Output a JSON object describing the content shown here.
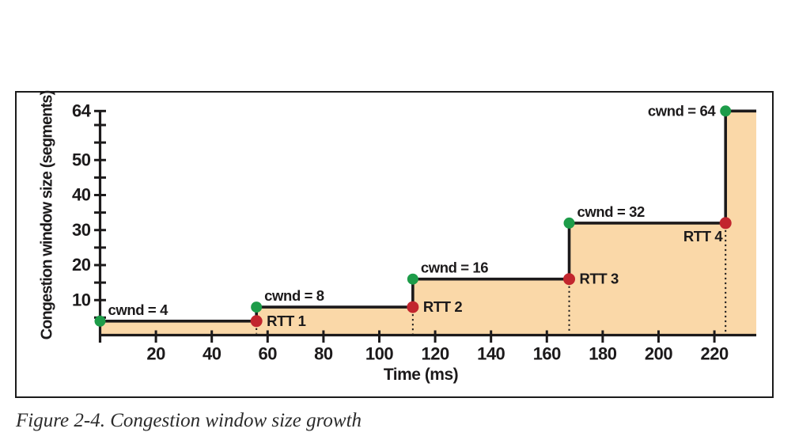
{
  "caption": "Figure 2-4. Congestion window size growth",
  "chart_data": {
    "type": "area",
    "subtype": "step",
    "title": "",
    "xlabel": "Time (ms)",
    "ylabel": "Congestion window size (segments)",
    "xlim": [
      0,
      235
    ],
    "ylim": [
      0,
      64
    ],
    "grid": false,
    "legend": "none",
    "x_ticks": [
      {
        "v": 0,
        "label": ""
      },
      {
        "v": 20,
        "label": "20"
      },
      {
        "v": 40,
        "label": "40"
      },
      {
        "v": 60,
        "label": "60"
      },
      {
        "v": 80,
        "label": "80"
      },
      {
        "v": 100,
        "label": "100"
      },
      {
        "v": 120,
        "label": "120"
      },
      {
        "v": 140,
        "label": "140"
      },
      {
        "v": 160,
        "label": "160"
      },
      {
        "v": 180,
        "label": "180"
      },
      {
        "v": 200,
        "label": "200"
      },
      {
        "v": 220,
        "label": "220"
      }
    ],
    "y_ticks": [
      {
        "v": 5,
        "label": ""
      },
      {
        "v": 10,
        "label": "10"
      },
      {
        "v": 15,
        "label": ""
      },
      {
        "v": 20,
        "label": "20"
      },
      {
        "v": 25,
        "label": ""
      },
      {
        "v": 30,
        "label": "30"
      },
      {
        "v": 35,
        "label": ""
      },
      {
        "v": 40,
        "label": "40"
      },
      {
        "v": 45,
        "label": ""
      },
      {
        "v": 50,
        "label": "50"
      },
      {
        "v": 55,
        "label": ""
      },
      {
        "v": 60,
        "label": ""
      },
      {
        "v": 64,
        "label": "64"
      }
    ],
    "steps": [
      {
        "cwnd": 4,
        "t_start": 0,
        "t_end": 56
      },
      {
        "cwnd": 8,
        "t_start": 56,
        "t_end": 112
      },
      {
        "cwnd": 16,
        "t_start": 112,
        "t_end": 168
      },
      {
        "cwnd": 32,
        "t_start": 168,
        "t_end": 224
      },
      {
        "cwnd": 64,
        "t_start": 224,
        "t_end": 235
      }
    ],
    "growth_points": [
      {
        "t": 0,
        "cwnd": 4,
        "label": "cwnd = 4"
      },
      {
        "t": 56,
        "cwnd": 8,
        "label": "cwnd = 8"
      },
      {
        "t": 112,
        "cwnd": 16,
        "label": "cwnd = 16"
      },
      {
        "t": 168,
        "cwnd": 32,
        "label": "cwnd = 32"
      },
      {
        "t": 224,
        "cwnd": 64,
        "label": "cwnd = 64"
      }
    ],
    "rtt_markers": [
      {
        "t": 56,
        "cwnd": 4,
        "label": "RTT 1"
      },
      {
        "t": 112,
        "cwnd": 8,
        "label": "RTT 2"
      },
      {
        "t": 168,
        "cwnd": 16,
        "label": "RTT 3"
      },
      {
        "t": 224,
        "cwnd": 32,
        "label": "RTT 4"
      }
    ],
    "colors": {
      "area_fill": "#FAD8A8",
      "step_line": "#1C1A1B",
      "growth_dot": "#1D9C49",
      "rtt_dot": "#C2262E",
      "axis": "#1C1A1B",
      "text": "#1C1A1B"
    }
  }
}
